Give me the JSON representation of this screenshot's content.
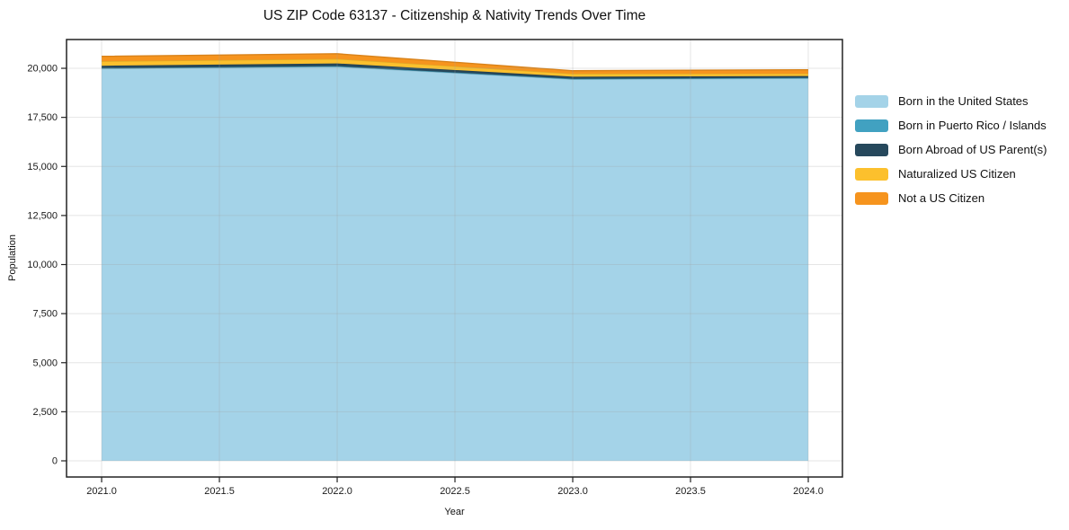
{
  "title": "US ZIP Code 63137 - Citizenship & Nativity Trends Over Time",
  "chart_data": {
    "type": "area",
    "stacked": true,
    "title": "US ZIP Code 63137 - Citizenship & Nativity Trends Over Time",
    "xlabel": "Year",
    "ylabel": "Population",
    "x": [
      2021,
      2022,
      2023,
      2024
    ],
    "series": [
      {
        "name": "Born in the United States",
        "color": "#a4d3e8",
        "values": [
          19980,
          20080,
          19440,
          19490
        ]
      },
      {
        "name": "Born in Puerto Rico / Islands",
        "color": "#41a1c1",
        "values": [
          30,
          30,
          25,
          25
        ]
      },
      {
        "name": "Born Abroad of US Parent(s)",
        "color": "#26485c",
        "values": [
          120,
          140,
          110,
          90
        ]
      },
      {
        "name": "Naturalized US Citizen",
        "color": "#fcc02d",
        "values": [
          230,
          230,
          150,
          130
        ]
      },
      {
        "name": "Not a US Citizen",
        "color": "#f6941e",
        "values": [
          250,
          260,
          150,
          190
        ]
      }
    ],
    "x_ticks": [
      2021.0,
      2021.5,
      2022.0,
      2022.5,
      2023.0,
      2023.5,
      2024.0
    ],
    "x_tick_labels": [
      "2021.0",
      "2021.5",
      "2022.0",
      "2022.5",
      "2023.0",
      "2023.5",
      "2024.0"
    ],
    "y_ticks": [
      0,
      2500,
      5000,
      7500,
      10000,
      12500,
      15000,
      17500,
      20000
    ],
    "y_tick_labels": [
      "0",
      "2,500",
      "5,000",
      "7,500",
      "10,000",
      "12,500",
      "15,000",
      "17,500",
      "20,000"
    ],
    "xlim": [
      2020.851,
      2024.145
    ],
    "ylim": [
      -824,
      21466
    ],
    "grid": true,
    "legend_position": "right",
    "grid_color": "rgba(160,160,160,0.28)",
    "frame_color": "#222222"
  }
}
